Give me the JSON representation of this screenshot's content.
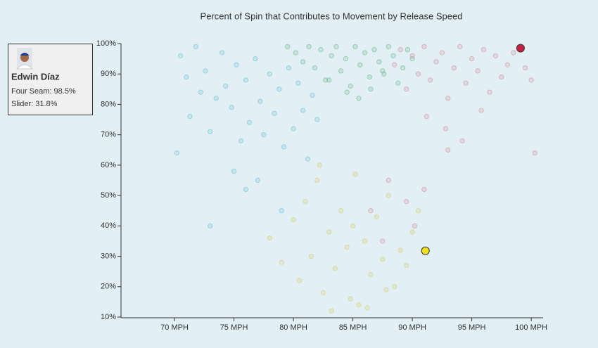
{
  "chart_data": {
    "type": "scatter",
    "title": "Percent of Spin that Contributes to Movement by Release Speed",
    "xlim": [
      65.5,
      101
    ],
    "xticks": [
      {
        "value": 70,
        "label": "70 MPH"
      },
      {
        "value": 75,
        "label": "75 MPH"
      },
      {
        "value": 80,
        "label": "80 MPH"
      },
      {
        "value": 85,
        "label": "85 MPH"
      },
      {
        "value": 90,
        "label": "90 MPH"
      },
      {
        "value": 95,
        "label": "95 MPH"
      },
      {
        "value": 100,
        "label": "100 MPH"
      }
    ],
    "ylim": [
      10,
      100
    ],
    "yticks": [
      {
        "value": 10,
        "label": "10%"
      },
      {
        "value": 20,
        "label": "20%"
      },
      {
        "value": 30,
        "label": "30%"
      },
      {
        "value": 40,
        "label": "40%"
      },
      {
        "value": 50,
        "label": "50%"
      },
      {
        "value": 60,
        "label": "60%"
      },
      {
        "value": 70,
        "label": "70%"
      },
      {
        "value": 80,
        "label": "80%"
      },
      {
        "value": 90,
        "label": "90%"
      },
      {
        "value": 100,
        "label": "100%"
      }
    ],
    "series": [
      {
        "color": "#6fc3d6",
        "x": [
          70.2,
          70.5,
          71,
          71.3,
          71.8,
          72.2,
          72.6,
          73,
          73.5,
          74,
          74.3,
          74.8,
          75.2,
          75.6,
          76,
          76.3,
          76.8,
          77.2,
          77.5,
          78,
          78.4,
          78.8,
          79.2,
          79.6,
          80,
          80.4,
          80.8,
          81.2,
          81.6,
          82,
          75,
          77,
          79,
          73,
          76
        ],
        "values": [
          64,
          96,
          89,
          76,
          99,
          84,
          91,
          71,
          82,
          97,
          86,
          79,
          93,
          68,
          88,
          74,
          95,
          81,
          70,
          90,
          77,
          85,
          66,
          92,
          72,
          87,
          78,
          62,
          83,
          75,
          58,
          55,
          45,
          40,
          52
        ]
      },
      {
        "color": "#6fbb92",
        "x": [
          79.5,
          80.2,
          80.8,
          81.3,
          81.8,
          82.3,
          82.7,
          83.2,
          83.6,
          84,
          84.4,
          84.8,
          85.2,
          85.6,
          86,
          86.4,
          86.8,
          87.2,
          87.6,
          88,
          88.4,
          88.8,
          89.2,
          89.6,
          90,
          84.5,
          85.5,
          86.5,
          83,
          87.5
        ],
        "values": [
          99,
          97,
          94,
          99,
          92,
          98,
          88,
          96,
          99,
          91,
          95,
          86,
          99,
          93,
          97,
          89,
          98,
          94,
          90,
          99,
          96,
          87,
          92,
          98,
          95,
          84,
          82,
          85,
          88,
          91
        ]
      },
      {
        "color": "#d393a2",
        "x": [
          88.5,
          89,
          89.5,
          90,
          90.5,
          91,
          91.5,
          92,
          92.5,
          93,
          93.5,
          94,
          94.5,
          95,
          95.5,
          96,
          96.5,
          97,
          97.5,
          98,
          98.5,
          99.5,
          100,
          91.2,
          92.8,
          94.2,
          95.8,
          88,
          89.5,
          91,
          93,
          90.2,
          86.5,
          87.5,
          100.3
        ],
        "values": [
          93,
          98,
          85,
          96,
          90,
          99,
          88,
          94,
          97,
          82,
          92,
          99,
          87,
          95,
          91,
          98,
          84,
          96,
          89,
          93,
          97,
          92,
          88,
          76,
          72,
          68,
          78,
          55,
          48,
          52,
          65,
          40,
          45,
          35,
          64
        ]
      },
      {
        "color": "#d6cf6f",
        "x": [
          78,
          79,
          80,
          80.5,
          81,
          81.5,
          82,
          82.5,
          83,
          83.5,
          84,
          84.5,
          85,
          85.5,
          86,
          86.5,
          87,
          87.5,
          88,
          88.5,
          89,
          89.5,
          90,
          90.5,
          83.2,
          84.8,
          86.2,
          87.8,
          82.2,
          85.2
        ],
        "values": [
          36,
          28,
          42,
          22,
          48,
          30,
          55,
          18,
          38,
          26,
          45,
          33,
          40,
          14,
          35,
          24,
          43,
          29,
          50,
          20,
          32,
          27,
          38,
          45,
          12,
          16,
          13,
          19,
          60,
          57
        ]
      }
    ],
    "player": "Edwin Díaz",
    "highlights": [
      {
        "label": "Four Seam: 98.5%",
        "x": 99.1,
        "y": 98.5,
        "color": "#c8213f"
      },
      {
        "label": "Slider: 31.8%",
        "x": 91.1,
        "y": 31.8,
        "color": "#f2e01c"
      }
    ]
  }
}
